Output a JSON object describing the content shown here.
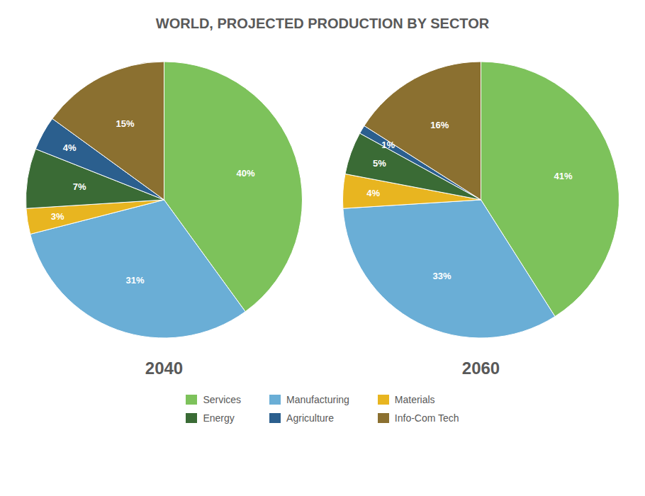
{
  "title": "WORLD, PROJECTED PRODUCTION BY SECTOR",
  "chart_data": [
    {
      "type": "pie",
      "title": "2040",
      "categories": [
        "Services",
        "Manufacturing",
        "Materials",
        "Energy",
        "Agriculture",
        "Info-Com Tech"
      ],
      "values": [
        40,
        31,
        3,
        7,
        4,
        15
      ],
      "value_labels": [
        "40%",
        "31%",
        "3%",
        "7%",
        "4%",
        "15%"
      ],
      "colors": [
        "#7dc25b",
        "#6aaed6",
        "#e8b520",
        "#3a6b35",
        "#2b5f8e",
        "#8b7030"
      ],
      "data_labels": true,
      "legend": "bottom"
    },
    {
      "type": "pie",
      "title": "2060",
      "categories": [
        "Services",
        "Manufacturing",
        "Materials",
        "Energy",
        "Agriculture",
        "Info-Com Tech"
      ],
      "values": [
        41,
        33,
        4,
        5,
        1,
        16
      ],
      "value_labels": [
        "41%",
        "33%",
        "4%",
        "5%",
        "1%",
        "16%"
      ],
      "colors": [
        "#7dc25b",
        "#6aaed6",
        "#e8b520",
        "#3a6b35",
        "#2b5f8e",
        "#8b7030"
      ],
      "data_labels": true
    }
  ]
}
